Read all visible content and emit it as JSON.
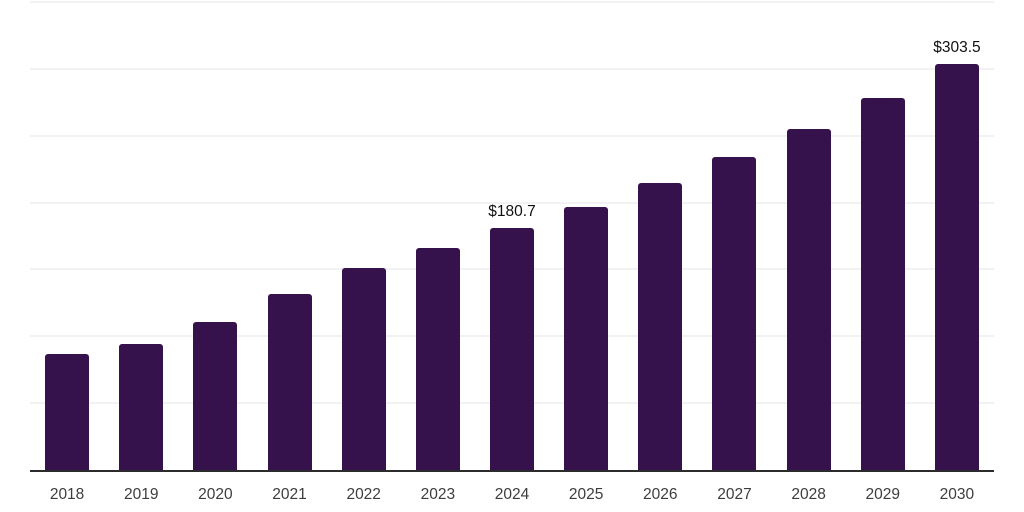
{
  "chart_data": {
    "type": "bar",
    "categories": [
      "2018",
      "2019",
      "2020",
      "2021",
      "2022",
      "2023",
      "2024",
      "2025",
      "2026",
      "2027",
      "2028",
      "2029",
      "2030"
    ],
    "values": [
      86.9,
      94.0,
      110.7,
      131.6,
      151.1,
      166.0,
      180.7,
      197.0,
      214.7,
      234.0,
      255.1,
      278.1,
      303.5
    ],
    "data_labels": [
      {
        "category": "2024",
        "text": "$180.7"
      },
      {
        "category": "2030",
        "text": "$303.5"
      }
    ],
    "ylim": [
      0,
      350
    ],
    "gridline_step": 50,
    "grid": "horizontal-only",
    "legend": "none",
    "y_tick_labels_visible": false,
    "colors": {
      "bar": "#35124B",
      "axis_line": "#2b2b2b",
      "gridline": "#f2f2f5",
      "x_tick_text": "#3d3d3d",
      "data_label_text": "#111111",
      "background": "#ffffff"
    }
  }
}
